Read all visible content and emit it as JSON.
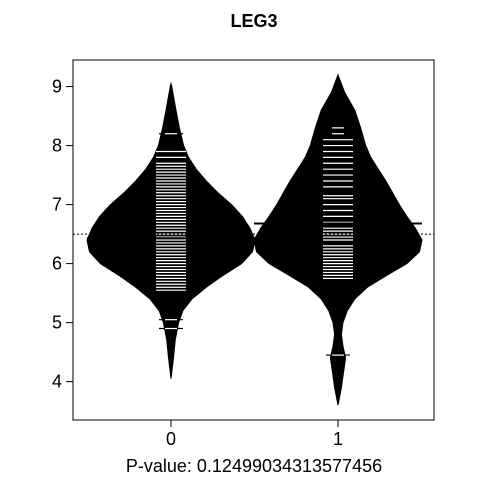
{
  "chart_data": {
    "type": "beanplot",
    "title": "LEG3",
    "xlabel": "P-value: 0.12499034313577456",
    "ylabel": "",
    "ylim": [
      3.35,
      9.45
    ],
    "yticks": [
      4,
      5,
      6,
      7,
      8,
      9
    ],
    "grid": false,
    "overall_mean": 6.5,
    "groups": [
      {
        "label": "0",
        "mean": 6.43,
        "min": 4.05,
        "max": 9.05,
        "density": [
          [
            4.05,
            0.0
          ],
          [
            4.4,
            0.03
          ],
          [
            4.7,
            0.05
          ],
          [
            5.0,
            0.09
          ],
          [
            5.2,
            0.14
          ],
          [
            5.4,
            0.25
          ],
          [
            5.6,
            0.42
          ],
          [
            5.8,
            0.62
          ],
          [
            6.0,
            0.84
          ],
          [
            6.2,
            0.97
          ],
          [
            6.4,
            1.0
          ],
          [
            6.6,
            0.94
          ],
          [
            6.8,
            0.85
          ],
          [
            7.0,
            0.72
          ],
          [
            7.2,
            0.56
          ],
          [
            7.4,
            0.42
          ],
          [
            7.6,
            0.3
          ],
          [
            7.8,
            0.21
          ],
          [
            8.0,
            0.15
          ],
          [
            8.3,
            0.1
          ],
          [
            8.6,
            0.06
          ],
          [
            9.0,
            0.01
          ],
          [
            9.05,
            0.0
          ]
        ],
        "observations": [
          4.9,
          5.05,
          5.55,
          5.6,
          5.65,
          5.7,
          5.75,
          5.8,
          5.85,
          5.9,
          5.95,
          6.0,
          6.05,
          6.1,
          6.15,
          6.2,
          6.25,
          6.3,
          6.35,
          6.4,
          6.45,
          6.5,
          6.55,
          6.6,
          6.65,
          6.7,
          6.75,
          6.8,
          6.85,
          6.9,
          6.95,
          7.0,
          7.05,
          7.1,
          7.15,
          7.2,
          7.25,
          7.3,
          7.35,
          7.4,
          7.45,
          7.5,
          7.55,
          7.6,
          7.65,
          7.7,
          7.8,
          7.9,
          8.2
        ]
      },
      {
        "label": "1",
        "mean": 6.68,
        "min": 3.6,
        "max": 9.2,
        "density": [
          [
            3.6,
            0.0
          ],
          [
            3.9,
            0.04
          ],
          [
            4.2,
            0.07
          ],
          [
            4.4,
            0.09
          ],
          [
            4.6,
            0.06
          ],
          [
            4.8,
            0.04
          ],
          [
            5.0,
            0.06
          ],
          [
            5.2,
            0.11
          ],
          [
            5.4,
            0.2
          ],
          [
            5.6,
            0.35
          ],
          [
            5.8,
            0.58
          ],
          [
            6.0,
            0.82
          ],
          [
            6.2,
            0.97
          ],
          [
            6.4,
            1.0
          ],
          [
            6.6,
            0.92
          ],
          [
            6.8,
            0.82
          ],
          [
            7.0,
            0.73
          ],
          [
            7.2,
            0.65
          ],
          [
            7.4,
            0.57
          ],
          [
            7.6,
            0.48
          ],
          [
            7.8,
            0.39
          ],
          [
            8.0,
            0.33
          ],
          [
            8.3,
            0.27
          ],
          [
            8.6,
            0.2
          ],
          [
            8.9,
            0.08
          ],
          [
            9.2,
            0.0
          ]
        ],
        "observations": [
          4.45,
          5.75,
          5.8,
          5.85,
          5.9,
          5.95,
          6.0,
          6.05,
          6.1,
          6.15,
          6.2,
          6.25,
          6.3,
          6.4,
          6.45,
          6.5,
          6.55,
          6.6,
          6.7,
          6.8,
          6.9,
          7.0,
          7.1,
          7.15,
          7.3,
          7.4,
          7.5,
          7.6,
          7.7,
          7.8,
          7.9,
          8.0,
          8.1,
          8.2,
          8.3
        ]
      }
    ]
  }
}
